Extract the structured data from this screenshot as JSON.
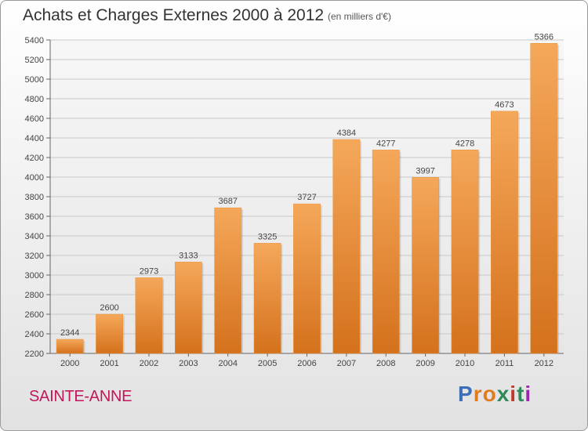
{
  "title": "Achats et Charges Externes 2000 à 2012",
  "subtitle": "(en milliers d'€)",
  "commune": "SAINTE-ANNE",
  "logo": {
    "text": "Proxiti",
    "letters": [
      "P",
      "r",
      "o",
      "x",
      "i",
      "t",
      "i"
    ],
    "colors": [
      "#3d6fb8",
      "#e07b1f",
      "#e07b1f",
      "#2e8b57",
      "#c0392b",
      "#2e8b57",
      "#9c27b0"
    ]
  },
  "colors": {
    "bar_top": "#f5a85a",
    "bar_bottom": "#d4711c",
    "grid": "#c8c8c8",
    "accent": "#c2185b"
  },
  "chart_data": {
    "type": "bar",
    "title": "Achats et Charges Externes 2000 à 2012",
    "subtitle": "(en milliers d'€)",
    "xlabel": "",
    "ylabel": "",
    "categories": [
      "2000",
      "2001",
      "2002",
      "2003",
      "2004",
      "2005",
      "2006",
      "2007",
      "2008",
      "2009",
      "2010",
      "2011",
      "2012"
    ],
    "values": [
      2344,
      2600,
      2973,
      3133,
      3687,
      3325,
      3727,
      4384,
      4277,
      3997,
      4278,
      4673,
      5366
    ],
    "ylim": [
      2200,
      5400
    ],
    "yticks": [
      2200,
      2400,
      2600,
      2800,
      3000,
      3200,
      3400,
      3600,
      3800,
      4000,
      4200,
      4400,
      4600,
      4800,
      5000,
      5200,
      5400
    ],
    "grid": true,
    "legend": "none"
  }
}
